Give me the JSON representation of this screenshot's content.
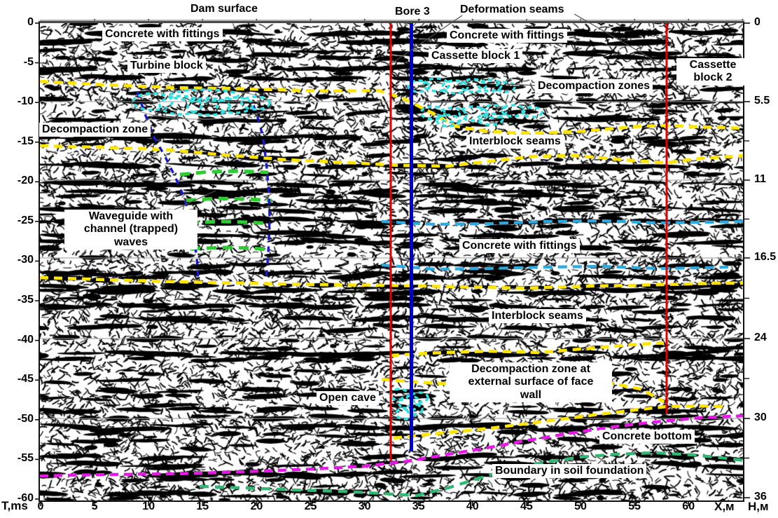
{
  "figure": {
    "type": "seismic time section of dam with interpretation overlay",
    "labels": {
      "dam_surface": "Dam surface",
      "bore": "Bore 3",
      "deformation_seams": "Deformation seams",
      "concrete_fittings_left": "Concrete with fittings",
      "turbine_block": "Turbine block",
      "concrete_fittings_top": "Concrete with fittings",
      "cassette_block_1": "Cassette block 1",
      "decompaction_zones": "Decompaction zones",
      "cassette_block_2": "Cassette\nblock 2",
      "decompaction_zone": "Decompaction zone",
      "interblock_seams_upper": "Interblock seams",
      "waveguide": "Waveguide with\nchannel (trapped)\nwaves",
      "concrete_fittings_mid": "Concrete with fittings",
      "interblock_seams_lower": "Interblock seams",
      "decompaction_face_wall": "Decompaction zone at\nexternal surface of face\nwall",
      "open_cave": "Open cave",
      "concrete_bottom": "Concrete bottom",
      "boundary_soil": "Boundary in soil foundation"
    }
  },
  "axes": {
    "left": {
      "unit": "T,ms",
      "ticks": [
        "0",
        "-5",
        "-10",
        "-15",
        "-20",
        "-25",
        "-30",
        "-35",
        "-40",
        "-45",
        "-50",
        "-55",
        "-60"
      ]
    },
    "bottom": {
      "unit": "X,м",
      "ticks": [
        "0",
        "5",
        "10",
        "15",
        "20",
        "25",
        "30",
        "35",
        "40",
        "45",
        "50",
        "55",
        "60"
      ]
    },
    "right": {
      "unit": "H,м",
      "ticks": [
        "0",
        "5.5",
        "11",
        "16.5",
        "24",
        "30",
        "36"
      ]
    }
  },
  "colors": {
    "interblock_seam_yellow": "#ffe400",
    "waveguide_green": "#2ecc2e",
    "waveguide_boundary_blue": "#1a1acd",
    "decompaction_cyan": "#2fe0e0",
    "concrete_boundary_lightblue": "#2da9e1",
    "concrete_bottom_magenta": "#e816e8",
    "soil_boundary_green": "#2eb873",
    "deformation_seam_red": "#e00000",
    "bore_blue": "#0000cd",
    "pointer_gray": "#4d4d4d"
  }
}
